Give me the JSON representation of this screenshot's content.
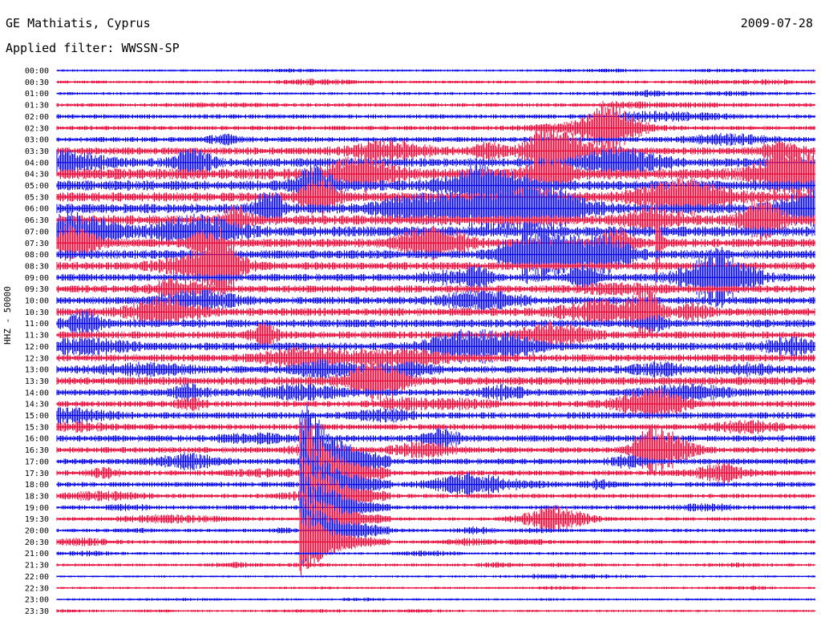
{
  "header": {
    "station": "GE Mathiatis, Cyprus",
    "filter_label": "Applied filter: WWSSN-SP",
    "date": "2009-07-28"
  },
  "chart_data": {
    "type": "line",
    "title": "GE Mathiatis, Cyprus",
    "subtitle": "Applied filter: WWSSN-SP",
    "date": "2009-07-28",
    "ylabel": "HHZ - 50000",
    "row_labels": [
      "00:00",
      "00:30",
      "01:00",
      "01:30",
      "02:00",
      "02:30",
      "03:00",
      "03:30",
      "04:00",
      "04:30",
      "05:00",
      "05:30",
      "06:00",
      "06:30",
      "07:00",
      "07:30",
      "08:00",
      "08:30",
      "09:00",
      "09:30",
      "10:00",
      "10:30",
      "11:00",
      "11:30",
      "12:00",
      "12:30",
      "13:00",
      "13:30",
      "14:00",
      "14:30",
      "15:00",
      "15:30",
      "16:00",
      "16:30",
      "17:00",
      "17:30",
      "18:00",
      "18:30",
      "19:00",
      "19:30",
      "20:00",
      "20:30",
      "21:00",
      "21:30",
      "22:00",
      "22:30",
      "23:00",
      "23:30"
    ],
    "row_colors": [
      "#0000ee",
      "#ee0033"
    ],
    "x_unit": "minutes",
    "xlim": [
      0,
      30
    ],
    "noise_level": [
      0.3,
      0.4,
      0.4,
      0.5,
      0.6,
      0.6,
      0.7,
      1.0,
      1.2,
      1.5,
      1.4,
      1.3,
      1.3,
      1.3,
      1.4,
      1.2,
      1.2,
      1.1,
      1.0,
      1.0,
      1.0,
      1.1,
      1.1,
      1.0,
      1.1,
      1.0,
      1.0,
      1.1,
      0.9,
      0.8,
      0.9,
      0.8,
      0.9,
      0.8,
      0.8,
      0.7,
      0.7,
      0.6,
      0.6,
      0.5,
      0.5,
      0.5,
      0.4,
      0.4,
      0.3,
      0.3,
      0.3,
      0.3
    ],
    "events": [
      {
        "row": 15,
        "minute": 23.8,
        "amplitude": 2.5,
        "duration_min": 0.3,
        "type": "local spike"
      },
      {
        "row": 34,
        "minute": 9.7,
        "amplitude": 6.0,
        "duration_min": 3.5,
        "type": "main earthquake",
        "span_rows": 8
      }
    ]
  }
}
